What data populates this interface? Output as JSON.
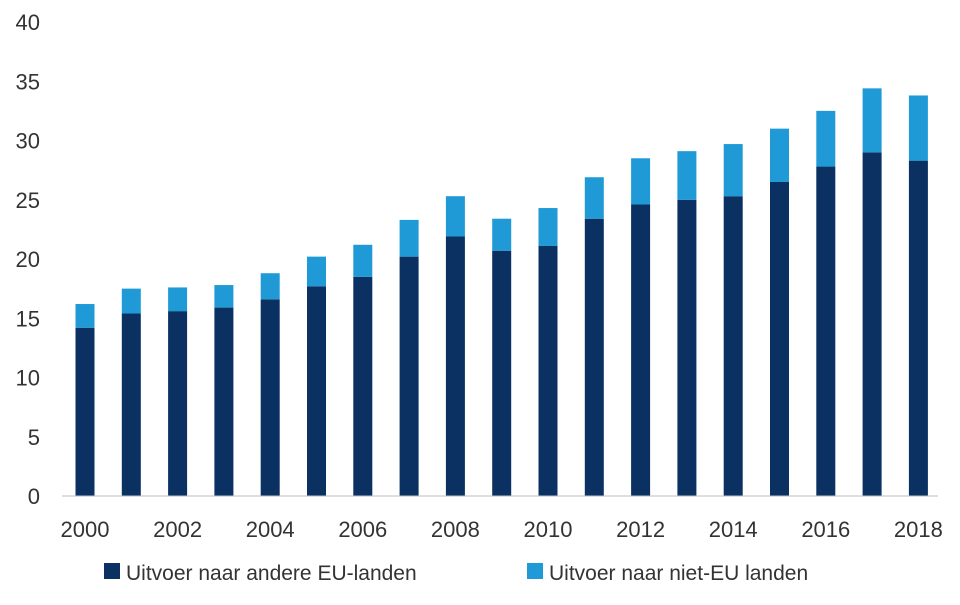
{
  "chart_data": {
    "type": "bar",
    "stacked": true,
    "title": "",
    "xlabel": "",
    "ylabel": "",
    "ylim": [
      0,
      40
    ],
    "yticks": [
      0,
      5,
      10,
      15,
      20,
      25,
      30,
      35,
      40
    ],
    "grid": false,
    "legend_position": "bottom",
    "categories": [
      "2000",
      "2001",
      "2002",
      "2003",
      "2004",
      "2005",
      "2006",
      "2007",
      "2008",
      "2009",
      "2010",
      "2011",
      "2012",
      "2013",
      "2014",
      "2015",
      "2016",
      "2017",
      "2018"
    ],
    "x_tick_labels": [
      "2000",
      "2002",
      "2004",
      "2006",
      "2008",
      "2010",
      "2012",
      "2014",
      "2016",
      "2018"
    ],
    "series": [
      {
        "name": "Uitvoer naar andere EU-landen",
        "color": "#0a3161",
        "values": [
          14.2,
          15.4,
          15.6,
          15.9,
          16.6,
          17.7,
          18.5,
          20.2,
          21.9,
          20.7,
          21.1,
          23.4,
          24.6,
          25.0,
          25.3,
          26.5,
          27.8,
          29.0,
          28.3
        ]
      },
      {
        "name": "Uitvoer naar niet-EU landen",
        "color": "#1f9ad6",
        "values": [
          2.0,
          2.1,
          2.0,
          1.9,
          2.2,
          2.5,
          2.7,
          3.1,
          3.4,
          2.7,
          3.2,
          3.5,
          3.9,
          4.1,
          4.4,
          4.5,
          4.7,
          5.4,
          5.5
        ]
      }
    ]
  }
}
